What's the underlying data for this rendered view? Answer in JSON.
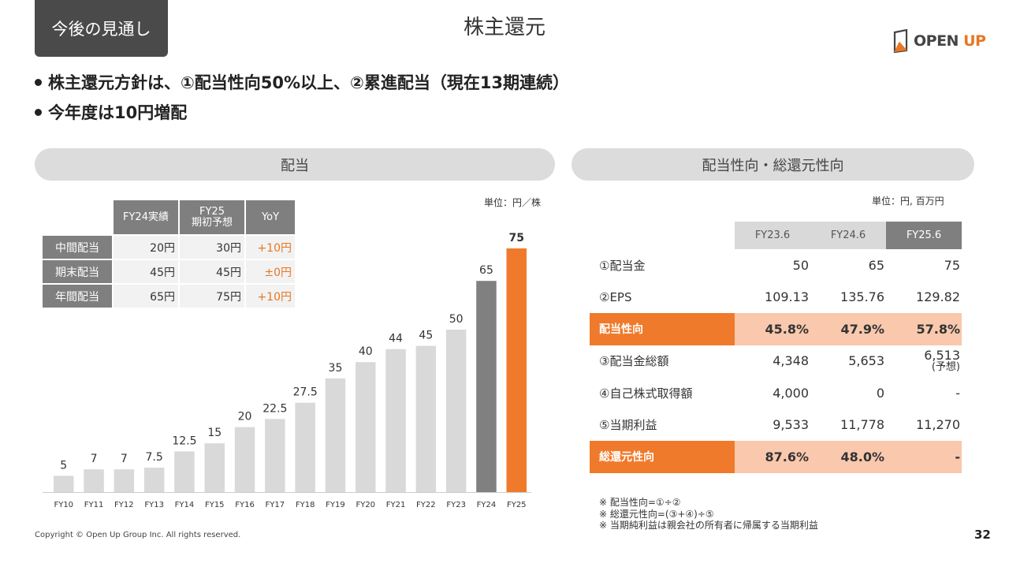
{
  "section_tag": "今後の見通し",
  "title": "株主還元",
  "logo": {
    "text_main": "OPEN ",
    "text_accent": "UP",
    "icon": "door-icon"
  },
  "bullets": [
    "株主還元方針は、①配当性向50%以上、②累進配当（現在13期連続）",
    "今年度は10円増配"
  ],
  "left_panel": {
    "title": "配当",
    "unit": "単位：円／株",
    "table": {
      "headers": [
        "FY24実績",
        "FY25\n期初予想",
        "YoY"
      ],
      "rows": [
        {
          "label": "中間配当",
          "fy24": "20円",
          "fy25": "30円",
          "yoy": "+10円"
        },
        {
          "label": "期末配当",
          "fy24": "45円",
          "fy25": "45円",
          "yoy": "±0円"
        },
        {
          "label": "年間配当",
          "fy24": "65円",
          "fy25": "75円",
          "yoy": "+10円"
        }
      ]
    }
  },
  "chart_data": {
    "type": "bar",
    "title": "配当",
    "categories": [
      "FY10",
      "FY11",
      "FY12",
      "FY13",
      "FY14",
      "FY15",
      "FY16",
      "FY17",
      "FY18",
      "FY19",
      "FY20",
      "FY21",
      "FY22",
      "FY23",
      "FY24",
      "FY25"
    ],
    "values": [
      5,
      7,
      7,
      7.5,
      12.5,
      15,
      20,
      22.5,
      27.5,
      35,
      40,
      44,
      45,
      50,
      65,
      75
    ],
    "labels": [
      "5",
      "7",
      "7",
      "7.5",
      "12.5",
      "15",
      "20",
      "22.5",
      "27.5",
      "35",
      "40",
      "44",
      "45",
      "50",
      "65",
      "75"
    ],
    "ylabel": "単位：円／株",
    "ylim": [
      0,
      75
    ],
    "colors": {
      "default": "#d9d9d9",
      "FY24": "#808080",
      "FY25": "#f07a2b"
    },
    "grid": false
  },
  "right_panel": {
    "title": "配当性向・総還元性向",
    "unit": "単位：円, 百万円",
    "columns": [
      "FY23.6",
      "FY24.6",
      "FY25.6"
    ],
    "rows": [
      {
        "label": "①配当金",
        "values": [
          "50",
          "65",
          "75"
        ],
        "highlight": false
      },
      {
        "label": "②EPS",
        "values": [
          "109.13",
          "135.76",
          "129.82"
        ],
        "highlight": false
      },
      {
        "label": "配当性向",
        "values": [
          "45.8%",
          "47.9%",
          "57.8%"
        ],
        "highlight": true
      },
      {
        "label": "③配当金総額",
        "values": [
          "4,348",
          "5,653",
          "6,513"
        ],
        "note": "(予想)",
        "highlight": false
      },
      {
        "label": "④自己株式取得額",
        "values": [
          "4,000",
          "0",
          "-"
        ],
        "highlight": false
      },
      {
        "label": "⑤当期利益",
        "values": [
          "9,533",
          "11,778",
          "11,270"
        ],
        "highlight": false
      },
      {
        "label": "総還元性向",
        "values": [
          "87.6%",
          "48.0%",
          "-"
        ],
        "highlight": true
      }
    ],
    "notes": [
      "※ 配当性向=①÷②",
      "※ 総還元性向=(③+④)÷⑤",
      "※ 当期純利益は親会社の所有者に帰属する当期利益"
    ]
  },
  "footer": {
    "copyright": "Copyright © Open Up Group Inc. All rights reserved.",
    "page": "32"
  },
  "colors": {
    "accent": "#f07a2b",
    "gray_dark": "#7f7f7f",
    "gray_light": "#d9d9d9",
    "highlight_bg": "#f9c8ad"
  }
}
